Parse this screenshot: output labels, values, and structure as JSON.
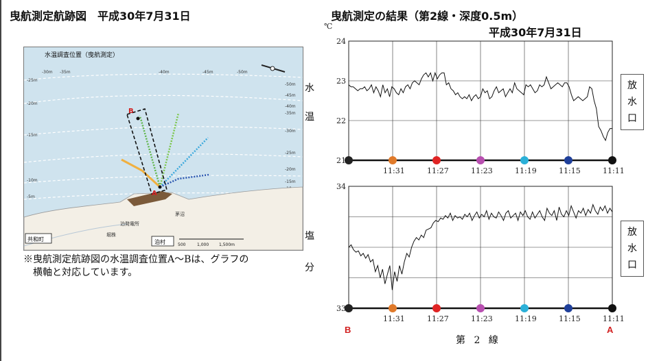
{
  "left_panel": {
    "title": "曳航測定航跡図　平成30年7月31日",
    "map": {
      "heading": "水温調査位置（曳航測定）",
      "contour_labels": [
        "-30m",
        "-35m",
        "-40m",
        "-45m",
        "-50m",
        "-25m",
        "-20m",
        "-15m",
        "-10m",
        "-5m",
        "-50m",
        "-45m",
        "-40m",
        "-35m",
        "-30m",
        "-25m",
        "-20m",
        "-15m",
        "-10m"
      ],
      "point_labels": [
        "B",
        "A"
      ],
      "place_labels": [
        "共和町",
        "泊村",
        "泊発電所",
        "茅沼",
        "堀株"
      ],
      "scale_labels": [
        "500",
        "1,000",
        "1,500m"
      ]
    },
    "note_line1": "※曳航測定航跡図の水温調査位置A～Bは、グラフの",
    "note_line2": "横軸と対応しています。"
  },
  "right_panel": {
    "title": "曳航測定の結果（第2線・深度0.5m）",
    "date": "平成30年7月31日",
    "xlabel": "第 2 線",
    "temp_label": [
      "水",
      "温"
    ],
    "salt_label": [
      "塩",
      "分"
    ],
    "discharge_box": [
      "放",
      "水",
      "口"
    ],
    "end_labels": {
      "left": "B",
      "right": "A"
    }
  },
  "chart_data": [
    {
      "type": "line",
      "name": "temperature",
      "yunit": "℃",
      "ylim": [
        21,
        24
      ],
      "yticks": [
        "24",
        "23",
        "22",
        "21"
      ],
      "xticks": [
        "11:31",
        "11:27",
        "11:23",
        "11:19",
        "11:15",
        "11:11"
      ],
      "grid": true,
      "marker_colors": [
        "#222222",
        "#e07a2a",
        "#e02424",
        "#b84fb0",
        "#2bb0d8",
        "#1f3f9a",
        "#111111"
      ],
      "y": [
        22.9,
        22.85,
        22.85,
        22.8,
        22.75,
        22.8,
        22.8,
        22.85,
        22.75,
        22.8,
        22.9,
        22.7,
        22.85,
        22.75,
        22.6,
        22.9,
        22.7,
        22.8,
        22.6,
        22.85,
        22.8,
        22.7,
        22.65,
        22.8,
        22.7,
        22.85,
        22.9,
        22.8,
        22.95,
        23.0,
        22.95,
        22.9,
        23.05,
        23.15,
        23.2,
        23.1,
        23.2,
        23.0,
        23.2,
        23.05,
        23.15,
        23.2,
        23.2,
        22.9,
        22.95,
        22.8,
        22.75,
        22.65,
        22.7,
        22.6,
        22.55,
        22.6,
        22.55,
        22.65,
        22.5,
        22.6,
        22.65,
        22.55,
        22.6,
        22.8,
        22.7,
        22.75,
        22.55,
        22.6,
        22.75,
        22.85,
        22.7,
        22.75,
        22.8,
        22.6,
        22.7,
        22.8,
        22.7,
        22.95,
        22.8,
        22.75,
        22.7,
        22.65,
        22.9,
        22.85,
        22.9,
        22.8,
        22.7,
        22.75,
        22.9,
        22.85,
        22.9,
        23.1,
        22.95,
        22.8,
        22.85,
        22.9,
        22.95,
        22.9,
        22.85,
        22.95,
        22.95,
        22.85,
        22.65,
        22.5,
        22.55,
        22.6,
        22.55,
        22.5,
        22.55,
        22.6,
        22.85,
        22.8,
        22.5,
        22.3,
        21.85,
        21.75,
        21.6,
        21.5,
        21.7,
        21.8,
        21.8
      ]
    },
    {
      "type": "line",
      "name": "salinity",
      "ylim": [
        33,
        34
      ],
      "yticks": [
        "34",
        "33"
      ],
      "xticks": [
        "11:31",
        "11:27",
        "11:23",
        "11:19",
        "11:15",
        "11:11"
      ],
      "grid": true,
      "marker_colors": [
        "#222222",
        "#e07a2a",
        "#e02424",
        "#b84fb0",
        "#2bb0d8",
        "#1f3f9a",
        "#111111"
      ],
      "y": [
        33.5,
        33.52,
        33.48,
        33.46,
        33.47,
        33.43,
        33.45,
        33.41,
        33.44,
        33.38,
        33.4,
        33.3,
        33.35,
        33.25,
        33.32,
        33.2,
        33.28,
        33.35,
        33.15,
        33.3,
        33.22,
        33.35,
        33.28,
        33.38,
        33.45,
        33.42,
        33.5,
        33.55,
        33.58,
        33.56,
        33.6,
        33.58,
        33.64,
        33.65,
        33.66,
        33.7,
        33.72,
        33.71,
        33.74,
        33.73,
        33.76,
        33.74,
        33.78,
        33.72,
        33.76,
        33.74,
        33.75,
        33.73,
        33.77,
        33.75,
        33.78,
        33.72,
        33.76,
        33.79,
        33.74,
        33.77,
        33.75,
        33.8,
        33.73,
        33.78,
        33.75,
        33.74,
        33.79,
        33.76,
        33.72,
        33.78,
        33.8,
        33.74,
        33.76,
        33.78,
        33.72,
        33.79,
        33.76,
        33.8,
        33.75,
        33.73,
        33.79,
        33.74,
        33.77,
        33.8,
        33.75,
        33.72,
        33.82,
        33.78,
        33.76,
        33.8,
        33.72,
        33.83,
        33.77,
        33.75,
        33.8,
        33.76,
        33.84,
        33.79,
        33.74,
        33.8,
        33.78,
        33.82,
        33.76,
        33.81,
        33.78,
        33.85,
        33.8,
        33.77,
        33.83,
        33.8,
        33.84,
        33.78,
        33.82,
        33.79
      ]
    }
  ]
}
